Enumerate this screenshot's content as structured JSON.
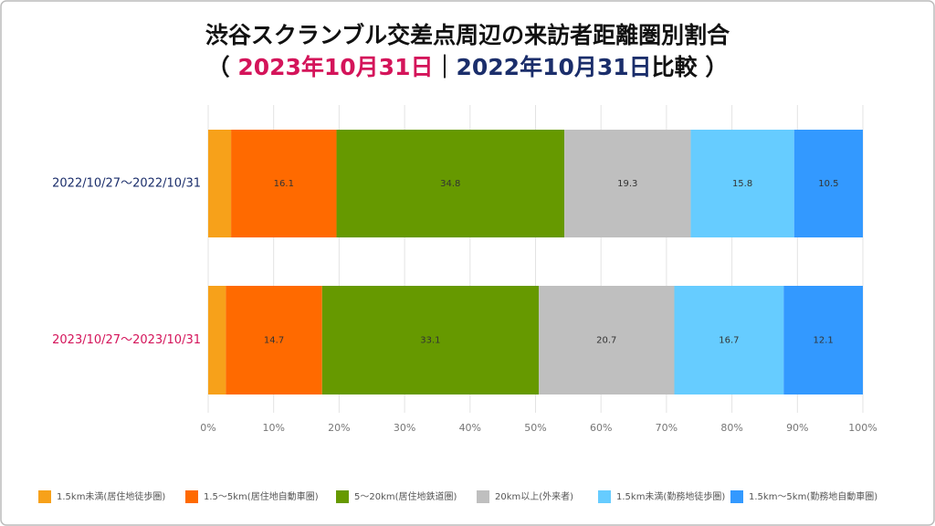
{
  "chart_data": {
    "type": "stacked_barh",
    "title": "渋谷スクランブル交差点周辺の来訪者距離圏別割合",
    "subtitle": [
      "（ ",
      "2023年10月31日",
      "｜",
      "2022年10月31日",
      "比較 ）"
    ],
    "categories": [
      "2022/10/27～2022/10/31",
      "2023/10/27～2023/10/31"
    ],
    "series": [
      {
        "name": "1.5km未満(居住地徒歩圏)",
        "color": "#f7a11a",
        "values": [
          3.5,
          2.7
        ]
      },
      {
        "name": "1.5～5km(居住地自動車圏)",
        "color": "#ff6a00",
        "values": [
          16.1,
          14.7
        ]
      },
      {
        "name": "5～20km(居住地鉄道圏)",
        "color": "#669900",
        "values": [
          34.8,
          33.1
        ]
      },
      {
        "name": "20km以上(外来者)",
        "color": "#bfbfbf",
        "values": [
          19.3,
          20.7
        ]
      },
      {
        "name": "1.5km未満(勤務地徒歩圏)",
        "color": "#66ccff",
        "values": [
          15.8,
          16.7
        ]
      },
      {
        "name": "1.5km～5km(勤務地自動車圏)",
        "color": "#3399ff",
        "values": [
          10.5,
          12.1
        ]
      }
    ],
    "xlim": [
      0,
      100
    ],
    "xticks": [
      {
        "value": 0,
        "label": "0%"
      },
      {
        "value": 10,
        "label": "10%"
      },
      {
        "value": 20,
        "label": "20%"
      },
      {
        "value": 30,
        "label": "30%"
      },
      {
        "value": 40,
        "label": "40%"
      },
      {
        "value": 50,
        "label": "50%"
      },
      {
        "value": 60,
        "label": "60%"
      },
      {
        "value": 70,
        "label": "70%"
      },
      {
        "value": 80,
        "label": "80%"
      },
      {
        "value": 90,
        "label": "90%"
      },
      {
        "value": 100,
        "label": "100%"
      }
    ],
    "grid": true,
    "legend": "bottom"
  }
}
